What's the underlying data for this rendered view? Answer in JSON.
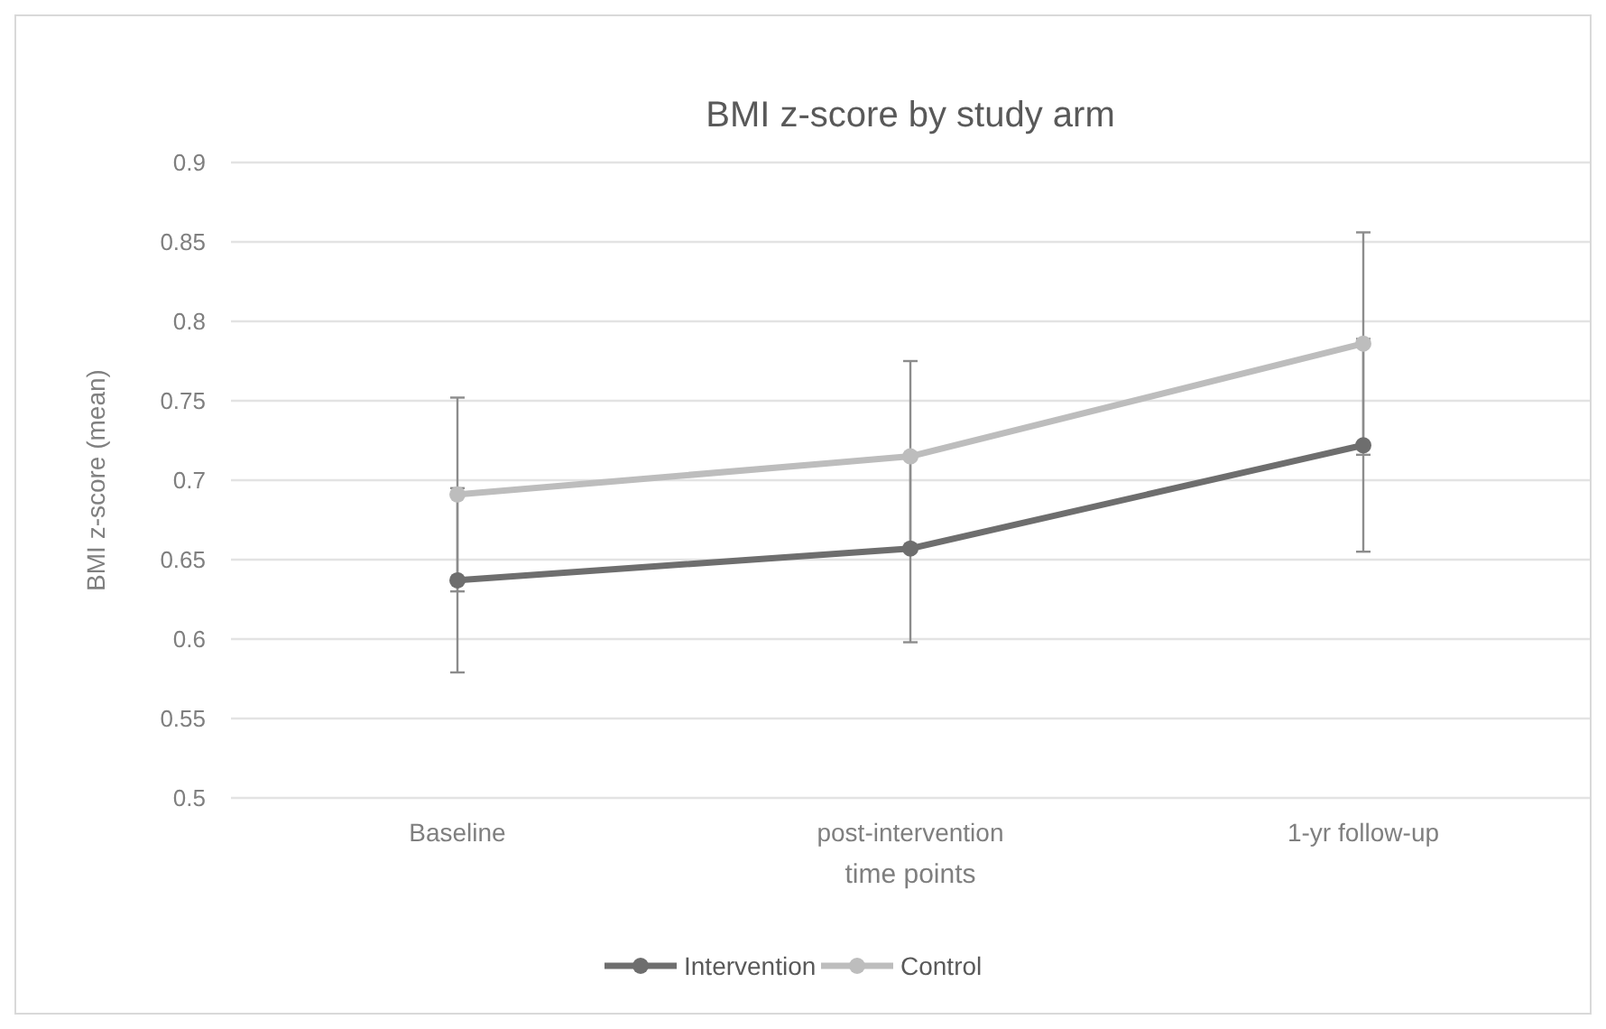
{
  "chart_data": {
    "type": "line",
    "title": "BMI z-score by study arm",
    "xlabel": "time points",
    "ylabel": "BMI z-score (mean)",
    "categories": [
      "Baseline",
      "post-intervention",
      "1-yr follow-up"
    ],
    "series": [
      {
        "name": "Intervention",
        "color": "#6e6e6e",
        "values": [
          0.637,
          0.657,
          0.722
        ],
        "errors": [
          0.058,
          0.059,
          0.067
        ]
      },
      {
        "name": "Control",
        "color": "#bdbdbd",
        "values": [
          0.691,
          0.715,
          0.786
        ],
        "errors": [
          0.061,
          0.06,
          0.07
        ]
      }
    ],
    "ylim": [
      0.5,
      0.9
    ],
    "yticks": [
      0.5,
      0.55,
      0.6,
      0.65,
      0.7,
      0.75,
      0.8,
      0.85,
      0.9
    ],
    "grid": "y",
    "legend": "bottom",
    "marker": "circle",
    "line_style": "solid"
  }
}
